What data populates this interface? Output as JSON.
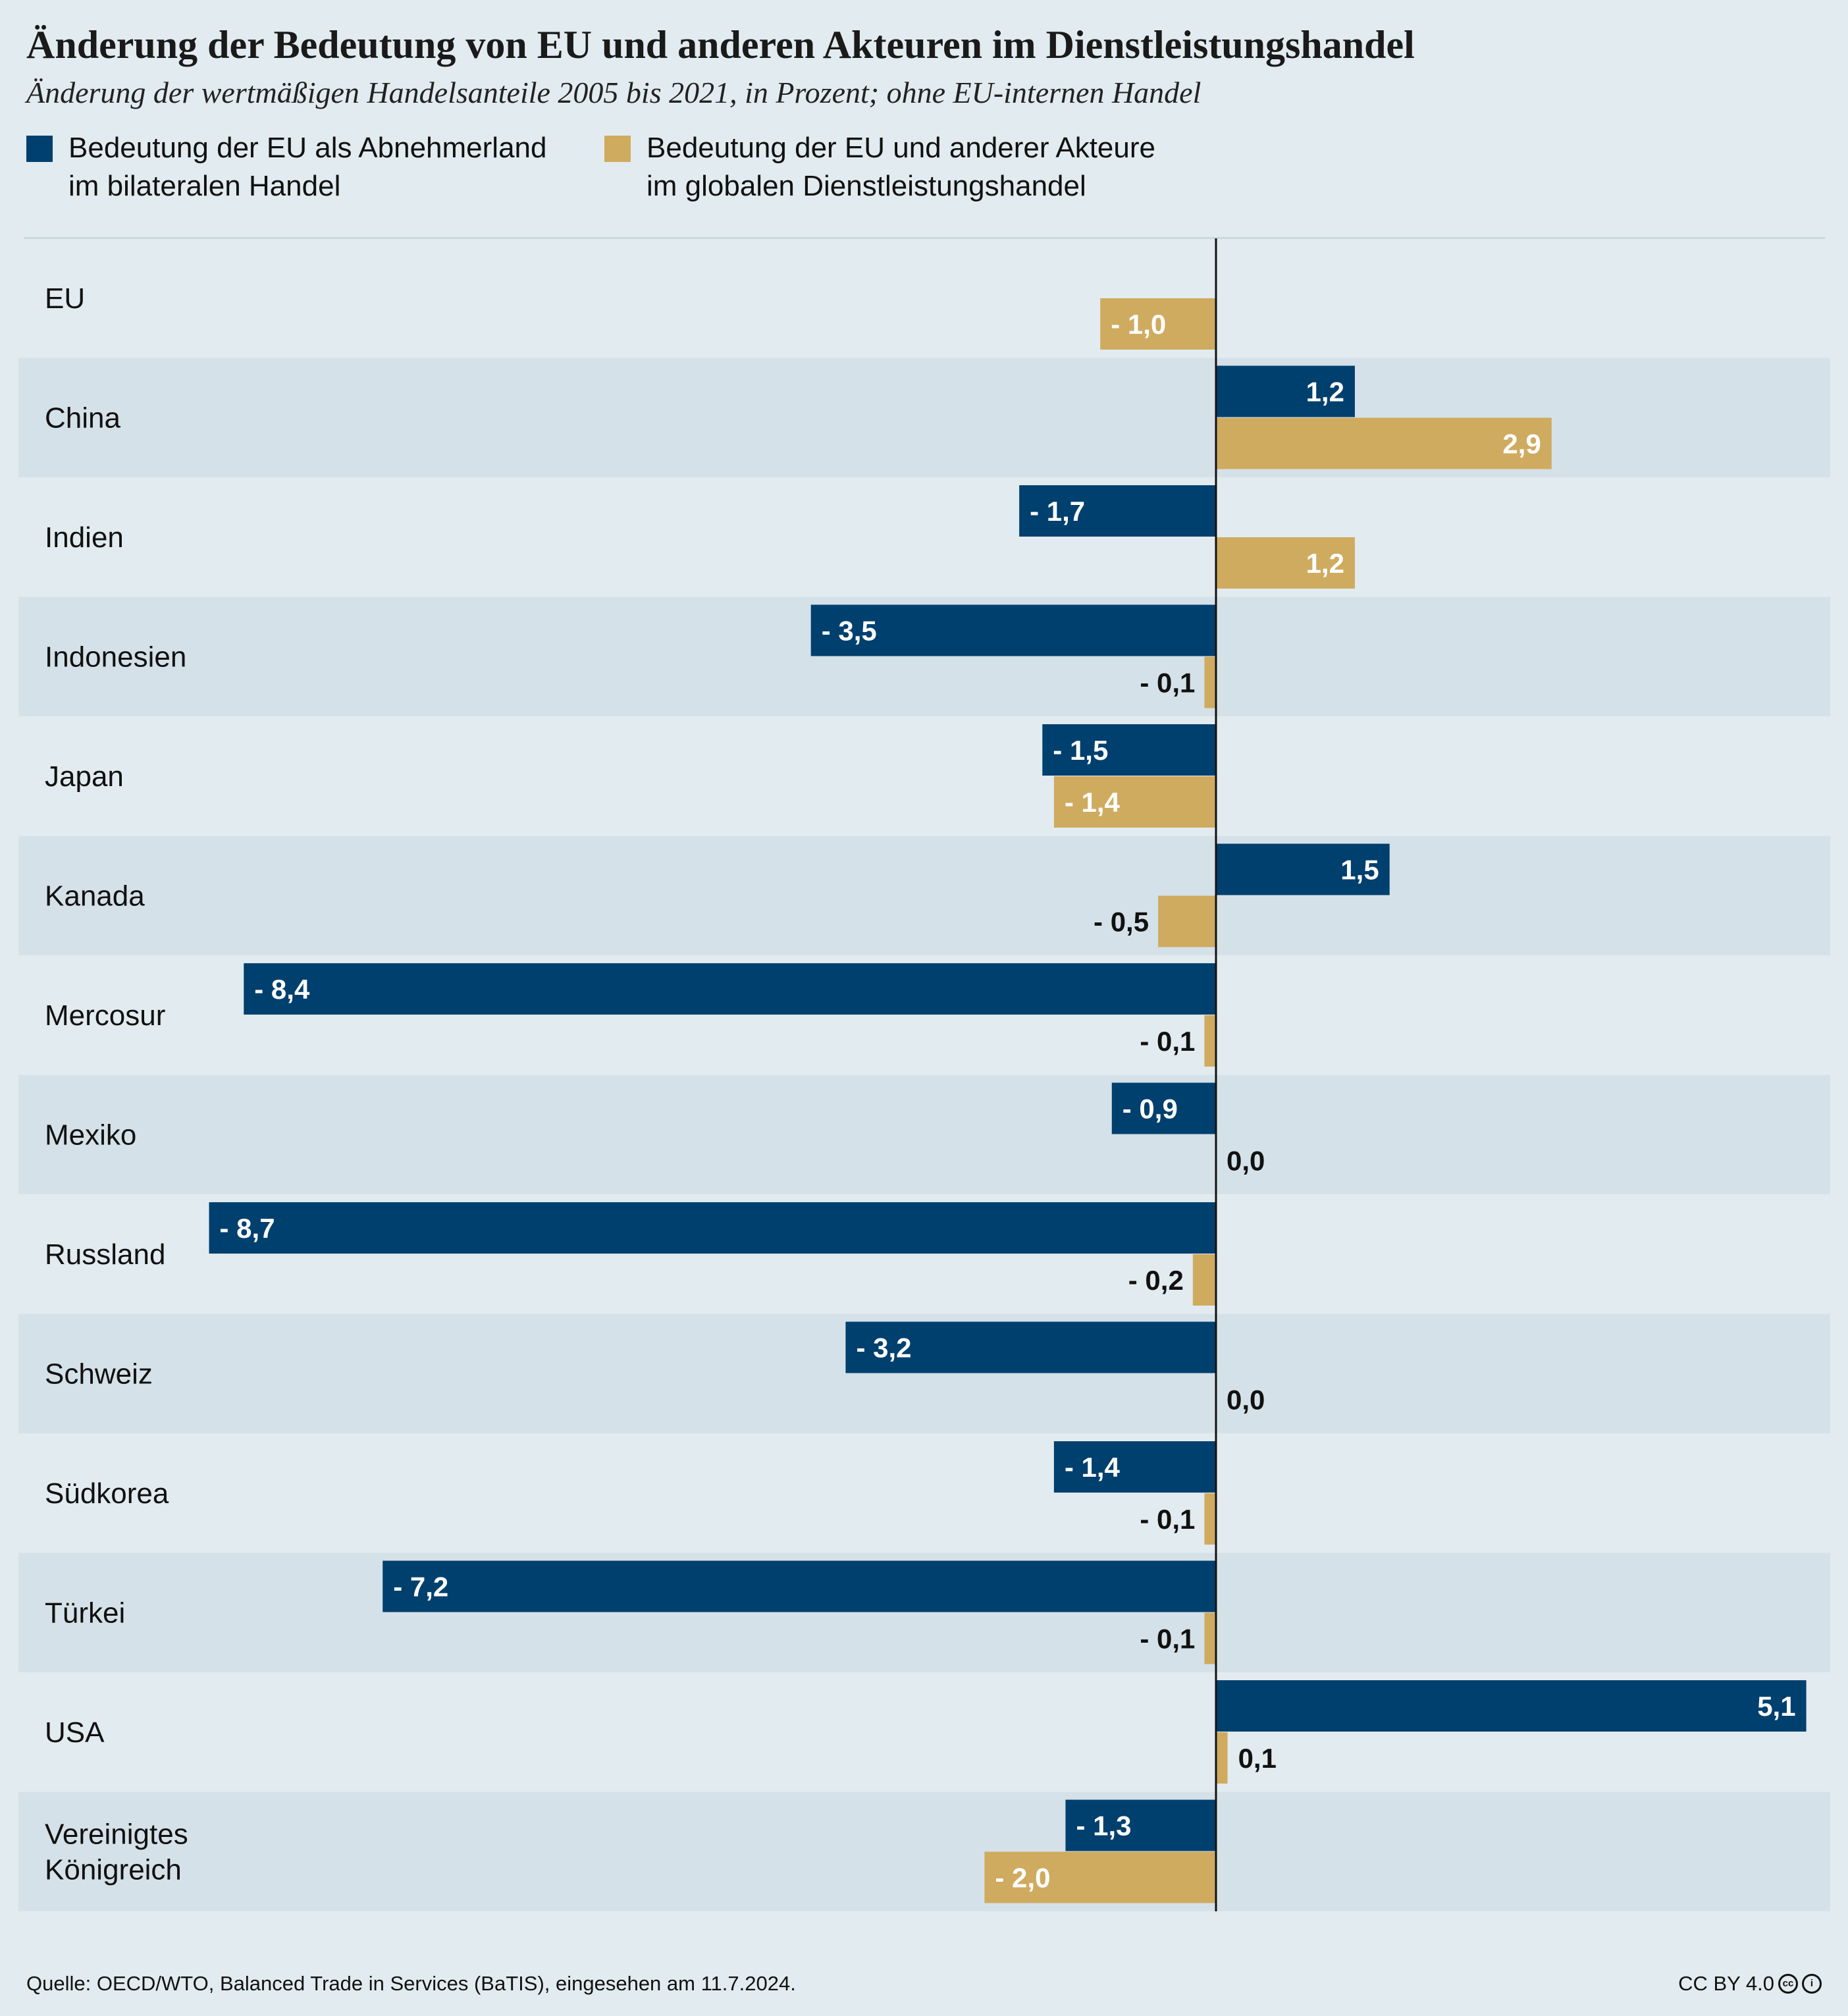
{
  "chart_data": {
    "type": "bar",
    "orientation": "horizontal",
    "title": "Änderung der Bedeutung von EU und anderen Akteuren im Dienstleistungshandel",
    "subtitle": "Änderung der wertmäßigen Handelsanteile 2005 bis 2021, in Prozent; ohne EU-internen Handel",
    "categories": [
      "EU",
      "China",
      "Indien",
      "Indonesien",
      "Japan",
      "Kanada",
      "Mercosur",
      "Mexiko",
      "Russland",
      "Schweiz",
      "Südkorea",
      "Türkei",
      "USA",
      "Vereinigtes Königreich"
    ],
    "category_labels": [
      "EU",
      "China",
      "Indien",
      "Indonesien",
      "Japan",
      "Kanada",
      "Mercosur",
      "Mexiko",
      "Russland",
      "Schweiz",
      "Südkorea",
      "Türkei",
      "USA",
      "Vereinigtes\nKönigreich"
    ],
    "series": [
      {
        "name": "Bedeutung der EU als Abnehmerland\nim bilateralen Handel",
        "color": "#00406e",
        "values": [
          null,
          1.2,
          -1.7,
          -3.5,
          -1.5,
          1.5,
          -8.4,
          -0.9,
          -8.7,
          -3.2,
          -1.4,
          -7.2,
          5.1,
          -1.3
        ],
        "labels": [
          "",
          "1,2",
          "- 1,7",
          "- 3,5",
          "- 1,5",
          "1,5",
          "- 8,4",
          "- 0,9",
          "- 8,7",
          "- 3,2",
          "- 1,4",
          "- 7,2",
          "5,1",
          "- 1,3"
        ]
      },
      {
        "name": "Bedeutung der EU und anderer Akteure\nim globalen Dienstleistungshandel",
        "color": "#cfab60",
        "values": [
          -1.0,
          2.9,
          1.2,
          -0.1,
          -1.4,
          -0.5,
          -0.1,
          0.0,
          -0.2,
          0.0,
          -0.1,
          -0.1,
          0.1,
          -2.0
        ],
        "labels": [
          "- 1,0",
          "2,9",
          "1,2",
          "- 0,1",
          "- 1,4",
          "- 0,5",
          "- 0,1",
          "0,0",
          "- 0,2",
          "0,0",
          "- 0,1",
          "- 0,1",
          "0,1",
          "- 2,0"
        ]
      }
    ],
    "xlim": [
      -10.3,
      5.35
    ],
    "grid": false,
    "legend": "top-left",
    "source": "Quelle: OECD/WTO, Balanced Trade in Services (BaTIS), eingesehen am 11.7.2024.",
    "license": "CC BY 4.0"
  }
}
